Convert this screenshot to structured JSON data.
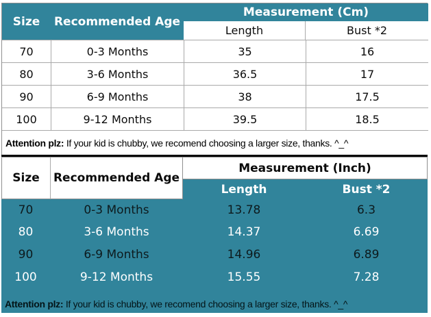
{
  "colors": {
    "teal": "#31849B"
  },
  "cm_table": {
    "headers": {
      "size": "Size",
      "age": "Recommended Age",
      "group": "Measurement (Cm)",
      "length": "Length",
      "bust": "Bust *2"
    },
    "rows": [
      {
        "size": "70",
        "age": "0-3 Months",
        "length": "35",
        "bust": "16"
      },
      {
        "size": "80",
        "age": "3-6 Months",
        "length": "36.5",
        "bust": "17"
      },
      {
        "size": "90",
        "age": "6-9 Months",
        "length": "38",
        "bust": "17.5"
      },
      {
        "size": "100",
        "age": "9-12 Months",
        "length": "39.5",
        "bust": "18.5"
      }
    ],
    "note": {
      "bold": "Attention plz:",
      "text": " If your kid is chubby, we recomend choosing a larger size, thanks. ^_^"
    }
  },
  "inch_table": {
    "headers": {
      "size": "Size",
      "age": "Recommended Age",
      "group": "Measurement (Inch)",
      "length": "Length",
      "bust": "Bust *2"
    },
    "rows": [
      {
        "size": "70",
        "age": "0-3 Months",
        "length": "13.78",
        "bust": "6.3"
      },
      {
        "size": "80",
        "age": "3-6 Months",
        "length": "14.37",
        "bust": "6.69"
      },
      {
        "size": "90",
        "age": "6-9 Months",
        "length": "14.96",
        "bust": "6.89"
      },
      {
        "size": "100",
        "age": "9-12 Months",
        "length": "15.55",
        "bust": "7.28"
      }
    ],
    "note": {
      "bold": "Attention plz:",
      "text": " If your kid is chubby, we recomend choosing a larger size, thanks. ^_^"
    }
  },
  "chart_data": [
    {
      "type": "table",
      "title": "Measurement (Cm)",
      "columns": [
        "Size",
        "Recommended Age",
        "Length",
        "Bust *2"
      ],
      "rows": [
        [
          "70",
          "0-3 Months",
          35,
          16
        ],
        [
          "80",
          "3-6 Months",
          36.5,
          17
        ],
        [
          "90",
          "6-9 Months",
          38,
          17.5
        ],
        [
          "100",
          "9-12 Months",
          39.5,
          18.5
        ]
      ],
      "note": "Attention plz: If your kid is chubby, we recomend choosing a larger size, thanks. ^_^"
    },
    {
      "type": "table",
      "title": "Measurement (Inch)",
      "columns": [
        "Size",
        "Recommended Age",
        "Length",
        "Bust *2"
      ],
      "rows": [
        [
          "70",
          "0-3 Months",
          13.78,
          6.3
        ],
        [
          "80",
          "3-6 Months",
          14.37,
          6.69
        ],
        [
          "90",
          "6-9 Months",
          14.96,
          6.89
        ],
        [
          "100",
          "9-12 Months",
          15.55,
          7.28
        ]
      ],
      "note": "Attention plz: If your kid is chubby, we recomend choosing a larger size, thanks. ^_^"
    }
  ]
}
